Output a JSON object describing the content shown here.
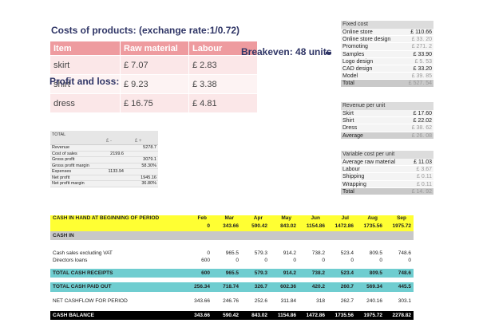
{
  "products": {
    "title": "Costs of products: (exchange rate:1/0.72)",
    "headers": [
      "Item",
      "Raw material",
      "Labour"
    ],
    "rows": [
      [
        "skirt",
        "£ 7.07",
        "£ 2.83"
      ],
      [
        "shirt",
        "£ 9.23",
        "£ 3.38"
      ],
      [
        "dress",
        "£ 16.75",
        "£ 4.81"
      ]
    ]
  },
  "profit_title": "Profit and loss:",
  "breakeven": "Breakeven: 48 units",
  "fixed_cost": {
    "title": "Fixed cost",
    "rows": [
      {
        "label": "Online store",
        "value": "£ 110.66"
      },
      {
        "label": "Online store design",
        "value": "£ 33. 20"
      },
      {
        "label": "Promoting",
        "value": "£ 271. 2"
      },
      {
        "label": "Samples",
        "value": "£ 33.90"
      },
      {
        "label": "Logo design",
        "value": "£ 5. 53"
      },
      {
        "label": "CAD design",
        "value": "£ 33.20"
      },
      {
        "label": "Model",
        "value": "£ 39. 85"
      },
      {
        "label": "Total",
        "value": "£ 527. 54"
      }
    ]
  },
  "revenue_per_unit": {
    "title": "Revenue per unit",
    "rows": [
      {
        "label": "Skirt",
        "value": "£ 17.60"
      },
      {
        "label": "Shirt",
        "value": "£ 22.02"
      },
      {
        "label": "Dress",
        "value": "£ 38. 62"
      },
      {
        "label": "Average",
        "value": "£ 26. 08"
      }
    ]
  },
  "variable_cost": {
    "title": "Variable cost per unit",
    "rows": [
      {
        "label": "Average raw material",
        "value": "£ 11.03"
      },
      {
        "label": "Labour",
        "value": "£ 3.67"
      },
      {
        "label": "Shipping",
        "value": "£ 0.11"
      },
      {
        "label": "Wrapping",
        "value": "£ 0.11"
      },
      {
        "label": "Total",
        "value": "£ 14. 92"
      }
    ]
  },
  "summary": {
    "title": "TOTAL",
    "currency_a": "£ -",
    "currency_b": "£ +",
    "rows": [
      {
        "label": "Revenue",
        "a": "",
        "b": "5278.7"
      },
      {
        "label": "Cost of sales",
        "a": "2199.6",
        "b": ""
      },
      {
        "label": "Gross profit",
        "a": "",
        "b": "3079.1"
      },
      {
        "label": "Gross profit margin",
        "a": "",
        "b": "58.30%"
      },
      {
        "label": "Expenses",
        "a": "1133.94",
        "b": ""
      },
      {
        "label": "Net profit",
        "a": "",
        "b": "1945.16"
      },
      {
        "label": "Net profit margin",
        "a": "",
        "b": "36.80%"
      }
    ]
  },
  "cashflow": {
    "opening_label": "CASH IN HAND AT BEGINNING OF PERIOD",
    "months": [
      "Feb",
      "Mar",
      "Apr",
      "May",
      "Jun",
      "Jul",
      "Aug",
      "Sep"
    ],
    "opening_values": [
      "0",
      "343.66",
      "590.42",
      "843.02",
      "1154.86",
      "1472.86",
      "1735.56",
      "1975.72"
    ],
    "cash_in_label": "CASH IN",
    "sales_label": "Cash sales excluding VAT",
    "sales_values": [
      "0",
      "965.5",
      "579.3",
      "914.2",
      "738.2",
      "523.4",
      "809.5",
      "748.6"
    ],
    "loans_label": "Directors loans",
    "loans_values": [
      "600",
      "0",
      "0",
      "0",
      "0",
      "0",
      "0",
      "0"
    ],
    "receipts_label": "TOTAL CASH RECEIPTS",
    "receipts_values": [
      "600",
      "965.5",
      "579.3",
      "914.2",
      "738.2",
      "523.4",
      "809.5",
      "748.6"
    ],
    "paid_label": "TOTAL CASH PAID OUT",
    "paid_values": [
      "256.34",
      "718.74",
      "326.7",
      "602.36",
      "420.2",
      "260.7",
      "569.34",
      "445.5"
    ],
    "net_label": "NET CASHFLOW FOR PERIOD",
    "net_values": [
      "343.66",
      "246.76",
      "252.6",
      "311.84",
      "318",
      "262.7",
      "240.16",
      "303.1"
    ],
    "balance_label": "CASH BALANCE",
    "balance_values": [
      "343.66",
      "590.42",
      "843.02",
      "1154.86",
      "1472.86",
      "1735.56",
      "1975.72",
      "2278.82"
    ]
  }
}
